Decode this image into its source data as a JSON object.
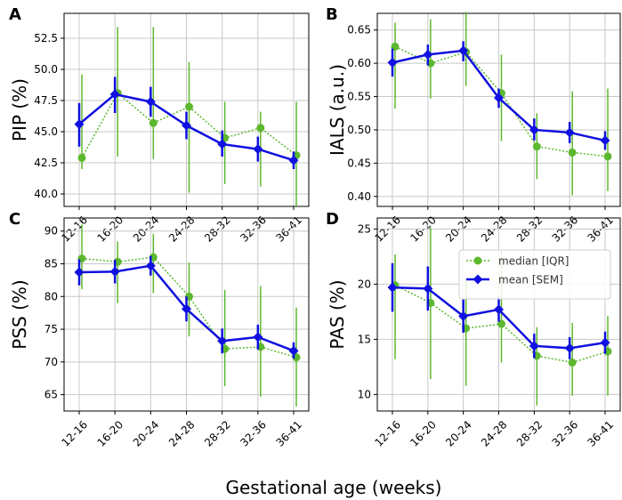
{
  "figure": {
    "xlabel": "Gestational age (weeks)",
    "legend": {
      "median_label": "median [IQR]",
      "mean_label": "mean [SEM]",
      "position": "top-right of panel D"
    },
    "colors": {
      "mean": "#1010e0",
      "median": "#5cb82e",
      "grid": "#c8c8c8"
    }
  },
  "chart_data": [
    {
      "panel": "A",
      "type": "line",
      "ylabel": "PIP (%)",
      "categories": [
        "12-16",
        "16-20",
        "20-24",
        "24-28",
        "28-32",
        "32-36",
        "36-41"
      ],
      "ylim": [
        39.0,
        54.5
      ],
      "yticks": [
        40.0,
        42.5,
        45.0,
        47.5,
        50.0,
        52.5
      ],
      "ytick_labels": [
        "40.0",
        "42.5",
        "45.0",
        "47.5",
        "50.0",
        "52.5"
      ],
      "grid": true,
      "series": [
        {
          "name": "mean [SEM]",
          "values": [
            45.6,
            48.0,
            47.4,
            45.5,
            44.0,
            43.6,
            42.7
          ],
          "err_low": [
            43.8,
            46.5,
            46.2,
            44.4,
            43.0,
            42.6,
            42.0
          ],
          "err_high": [
            47.3,
            49.4,
            48.6,
            46.6,
            45.1,
            44.6,
            43.4
          ]
        },
        {
          "name": "median [IQR]",
          "values": [
            42.9,
            48.1,
            45.7,
            47.0,
            44.5,
            45.3,
            43.1
          ],
          "err_low": [
            42.0,
            43.0,
            42.8,
            40.1,
            40.8,
            40.6,
            39.0
          ],
          "err_high": [
            49.6,
            53.4,
            53.4,
            50.6,
            47.4,
            46.6,
            47.4
          ]
        }
      ]
    },
    {
      "panel": "B",
      "type": "line",
      "ylabel": "IALS (a.u.)",
      "categories": [
        "12-16",
        "16-20",
        "20-24",
        "24-28",
        "28-32",
        "32-36",
        "36-41"
      ],
      "ylim": [
        0.385,
        0.675
      ],
      "yticks": [
        0.4,
        0.45,
        0.5,
        0.55,
        0.6,
        0.65
      ],
      "ytick_labels": [
        "0.40",
        "0.45",
        "0.50",
        "0.55",
        "0.60",
        "0.65"
      ],
      "grid": true,
      "series": [
        {
          "name": "mean [SEM]",
          "values": [
            0.601,
            0.613,
            0.619,
            0.548,
            0.5,
            0.496,
            0.484
          ],
          "err_low": [
            0.58,
            0.597,
            0.603,
            0.533,
            0.484,
            0.48,
            0.47
          ],
          "err_high": [
            0.622,
            0.628,
            0.633,
            0.562,
            0.517,
            0.512,
            0.498
          ]
        },
        {
          "name": "median [IQR]",
          "values": [
            0.625,
            0.6,
            0.617,
            0.555,
            0.475,
            0.466,
            0.46
          ],
          "err_low": [
            0.532,
            0.547,
            0.566,
            0.483,
            0.426,
            0.402,
            0.408
          ],
          "err_high": [
            0.661,
            0.666,
            0.677,
            0.613,
            0.525,
            0.558,
            0.562
          ]
        }
      ]
    },
    {
      "panel": "C",
      "type": "line",
      "ylabel": "PSS (%)",
      "categories": [
        "12-16",
        "16-20",
        "20-24",
        "24-28",
        "28-32",
        "32-36",
        "36-41"
      ],
      "ylim": [
        62.5,
        92.0
      ],
      "yticks": [
        65,
        70,
        75,
        80,
        85,
        90
      ],
      "ytick_labels": [
        "65",
        "70",
        "75",
        "80",
        "85",
        "90"
      ],
      "grid": true,
      "series": [
        {
          "name": "mean [SEM]",
          "values": [
            83.7,
            83.8,
            84.7,
            78.1,
            73.2,
            73.8,
            71.7
          ],
          "err_low": [
            81.7,
            82.0,
            83.2,
            76.2,
            71.3,
            71.9,
            70.5
          ],
          "err_high": [
            85.7,
            85.6,
            86.2,
            80.0,
            75.1,
            75.7,
            73.0
          ]
        },
        {
          "name": "median [IQR]",
          "values": [
            85.8,
            85.3,
            86.0,
            80.0,
            72.0,
            72.3,
            70.7
          ],
          "err_low": [
            81.1,
            79.0,
            80.5,
            73.9,
            66.3,
            64.7,
            63.2
          ],
          "err_high": [
            91.0,
            88.4,
            89.6,
            85.2,
            81.0,
            81.6,
            78.3
          ]
        }
      ]
    },
    {
      "panel": "D",
      "type": "line",
      "ylabel": "PAS (%)",
      "categories": [
        "12-16",
        "16-20",
        "20-24",
        "24-28",
        "28-32",
        "32-36",
        "36-41"
      ],
      "ylim": [
        8.5,
        26.0
      ],
      "yticks": [
        10,
        15,
        20,
        25
      ],
      "ytick_labels": [
        "10",
        "15",
        "20",
        "25"
      ],
      "grid": true,
      "series": [
        {
          "name": "mean [SEM]",
          "values": [
            19.7,
            19.6,
            17.1,
            17.7,
            14.4,
            14.2,
            14.7
          ],
          "err_low": [
            17.5,
            17.6,
            15.6,
            16.6,
            13.3,
            13.2,
            13.7
          ],
          "err_high": [
            21.9,
            21.6,
            18.6,
            18.8,
            15.5,
            15.2,
            15.7
          ]
        },
        {
          "name": "median [IQR]",
          "values": [
            19.9,
            18.3,
            16.0,
            16.4,
            13.5,
            12.9,
            13.9
          ],
          "err_low": [
            13.2,
            11.4,
            10.8,
            12.9,
            9.0,
            9.9,
            9.9
          ],
          "err_high": [
            22.7,
            25.1,
            20.5,
            23.1,
            16.1,
            16.5,
            17.1
          ]
        }
      ]
    }
  ]
}
